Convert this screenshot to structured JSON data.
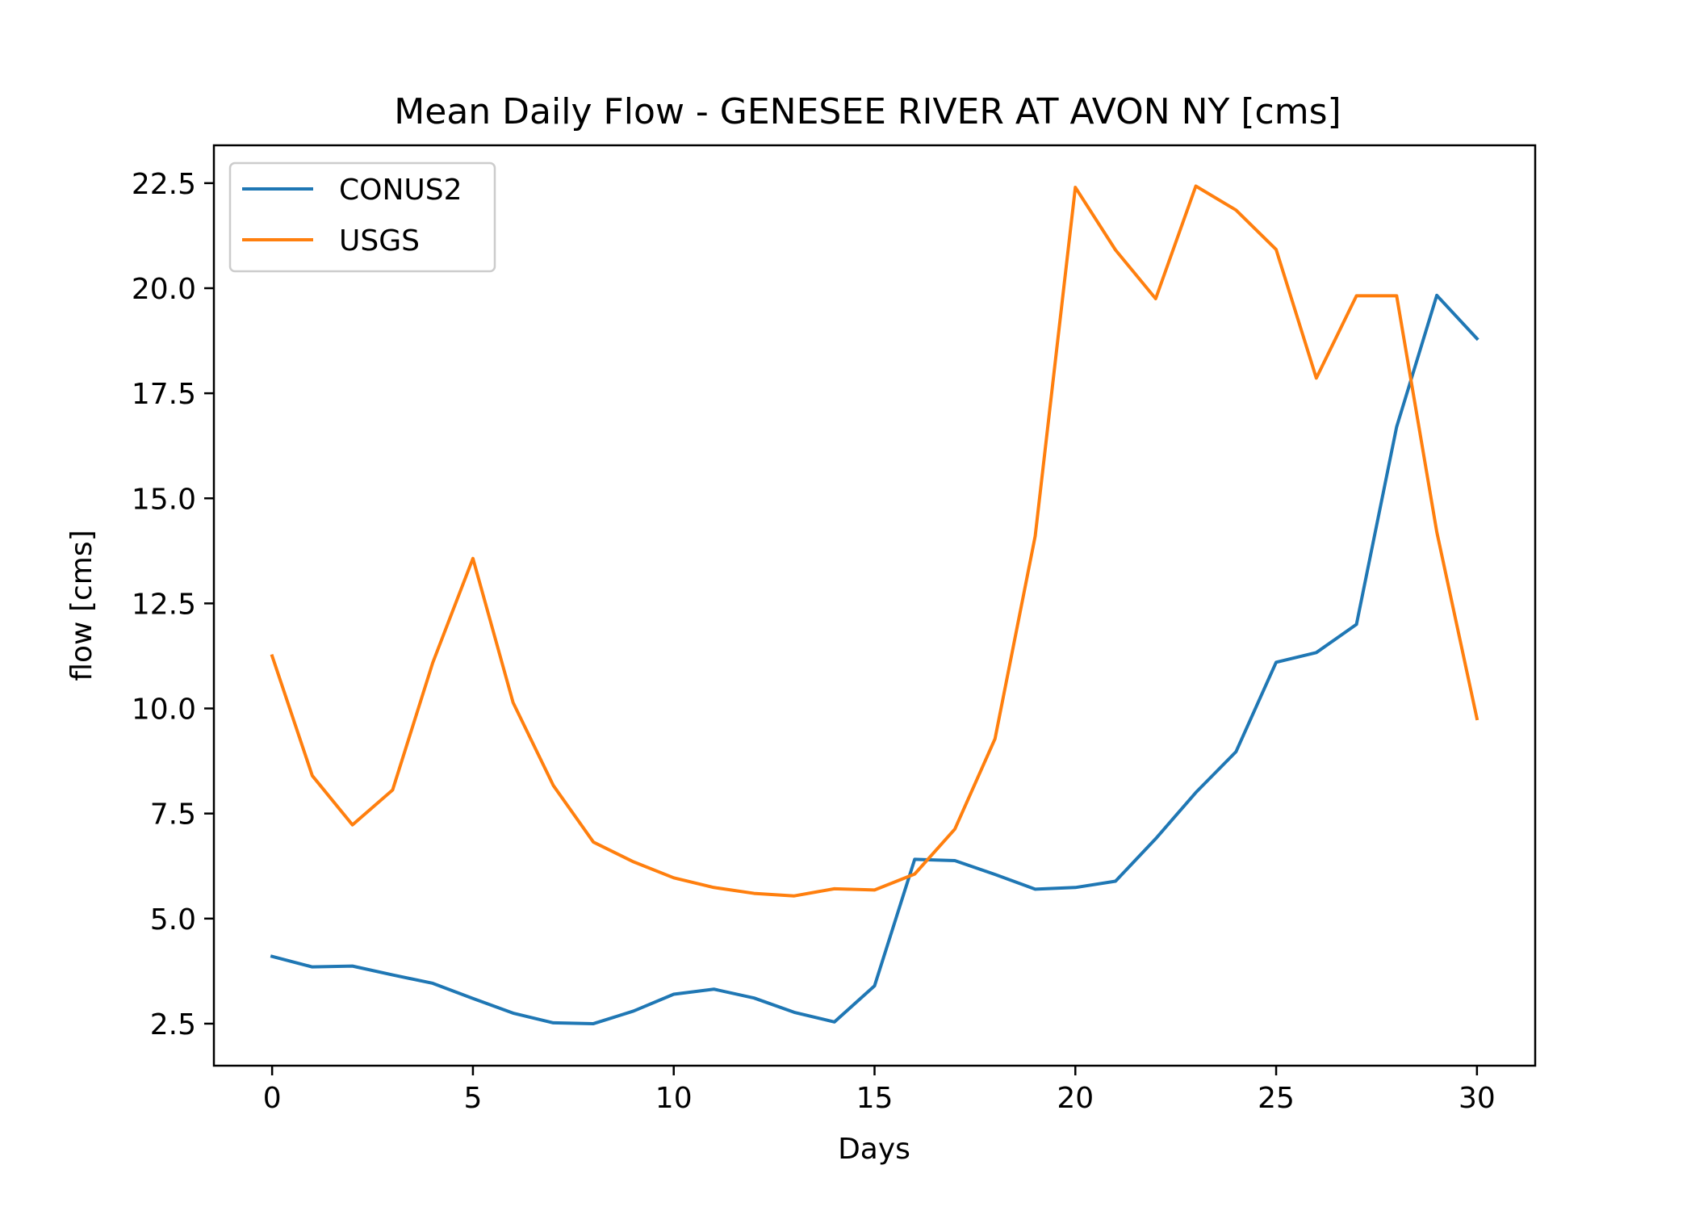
{
  "chart_data": {
    "type": "line",
    "title": "Mean Daily Flow - GENESEE RIVER AT AVON NY [cms]",
    "xlabel": "Days",
    "ylabel": "flow [cms]",
    "xlim": [
      -1.45,
      31.45
    ],
    "ylim": [
      1.5,
      23.4
    ],
    "xticks": [
      0,
      5,
      10,
      15,
      20,
      25,
      30
    ],
    "xtick_labels": [
      "0",
      "5",
      "10",
      "15",
      "20",
      "25",
      "30"
    ],
    "yticks": [
      2.5,
      5.0,
      7.5,
      10.0,
      12.5,
      15.0,
      17.5,
      20.0,
      22.5
    ],
    "ytick_labels": [
      "2.5",
      "5.0",
      "7.5",
      "10.0",
      "12.5",
      "15.0",
      "17.5",
      "20.0",
      "22.5"
    ],
    "grid": false,
    "legend_position": "upper-left",
    "x": [
      0,
      1,
      2,
      3,
      4,
      5,
      6,
      7,
      8,
      9,
      10,
      11,
      12,
      13,
      14,
      15,
      16,
      17,
      18,
      19,
      20,
      21,
      22,
      23,
      24,
      25,
      26,
      27,
      28,
      29,
      30
    ],
    "series": [
      {
        "name": "CONUS2",
        "color": "#1f77b4",
        "values": [
          4.1,
          3.85,
          3.87,
          3.66,
          3.46,
          3.1,
          2.75,
          2.52,
          2.5,
          2.8,
          3.2,
          3.32,
          3.11,
          2.77,
          2.54,
          3.4,
          6.41,
          6.38,
          6.05,
          5.7,
          5.74,
          5.89,
          6.9,
          8.0,
          8.97,
          11.1,
          11.33,
          12.0,
          16.7,
          19.83,
          18.8
        ]
      },
      {
        "name": "USGS",
        "color": "#ff7f0e",
        "values": [
          11.25,
          8.4,
          7.23,
          8.06,
          11.09,
          13.57,
          10.14,
          8.17,
          6.82,
          6.35,
          5.97,
          5.74,
          5.6,
          5.54,
          5.71,
          5.68,
          6.06,
          7.13,
          9.28,
          14.1,
          22.4,
          20.91,
          19.75,
          22.43,
          21.86,
          20.92,
          17.86,
          19.82,
          19.82,
          14.2,
          9.76
        ]
      }
    ]
  }
}
